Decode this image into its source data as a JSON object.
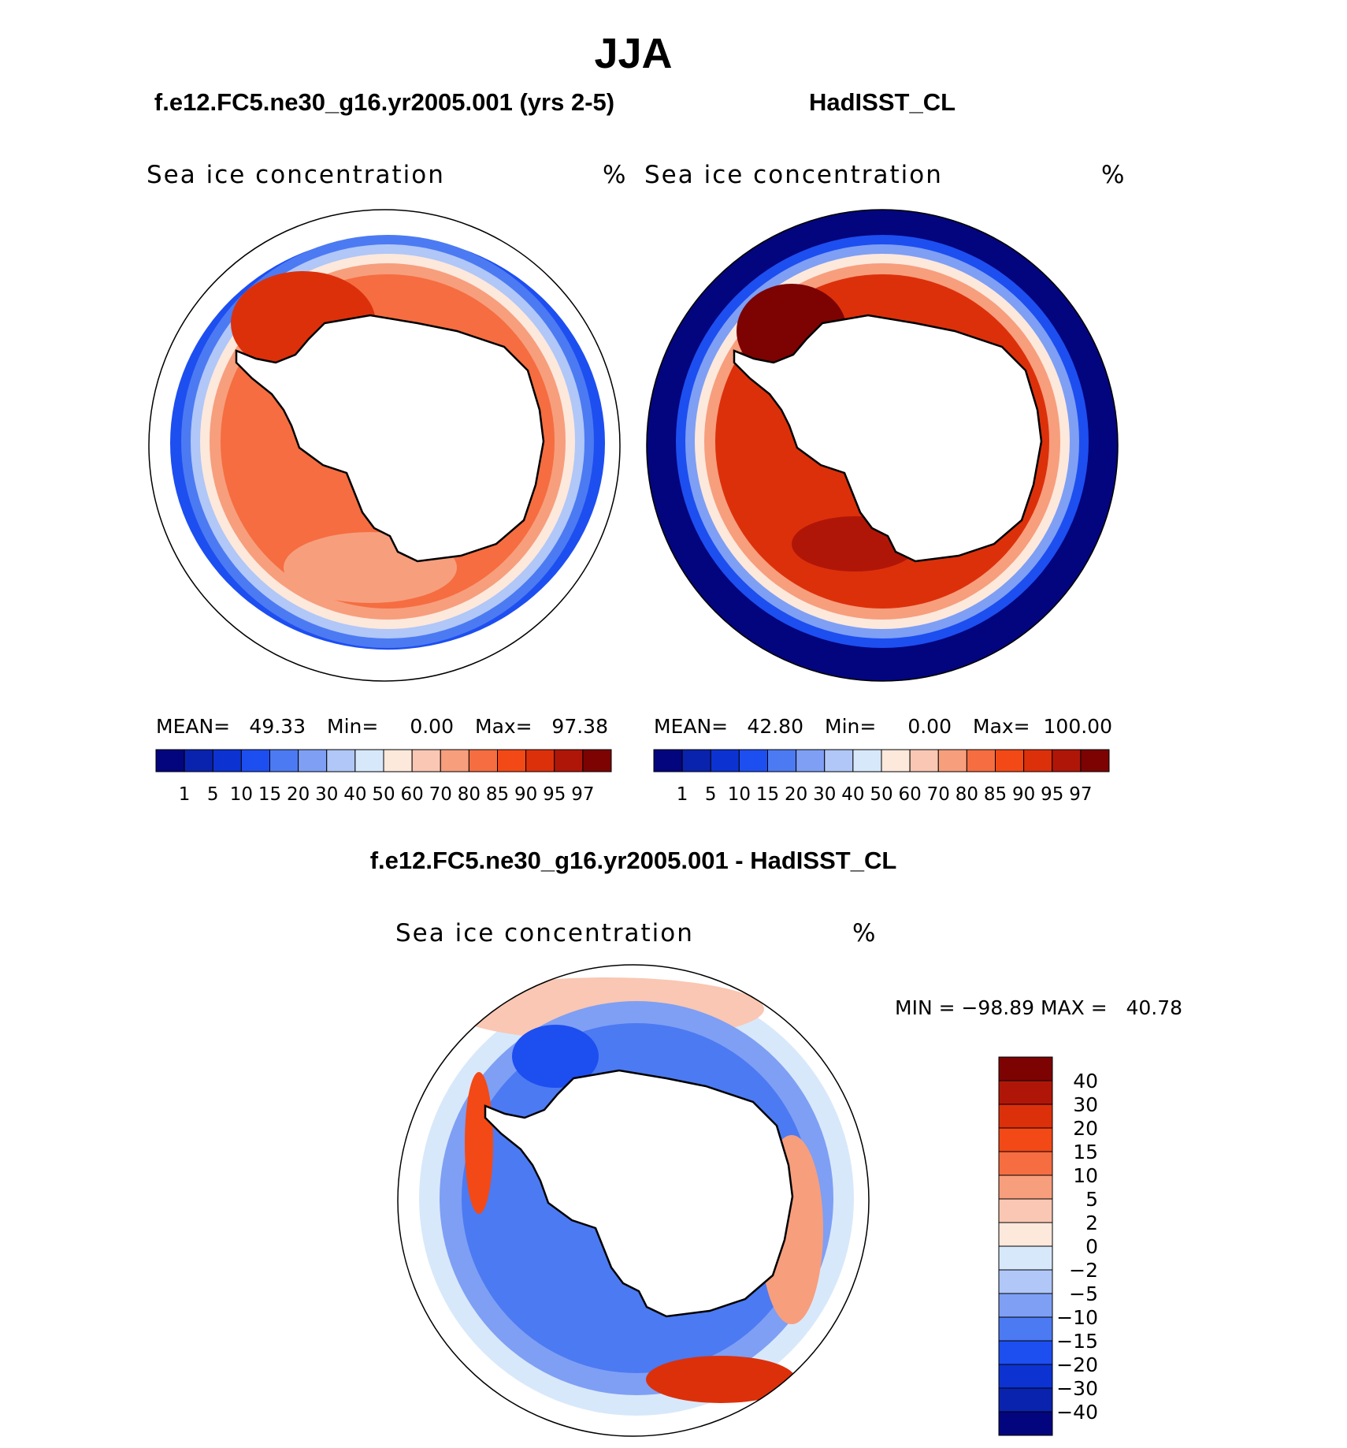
{
  "figure": {
    "season_title": "JJA",
    "panels": [
      {
        "id": "model",
        "title": "f.e12.FC5.ne30_g16.yr2005.001 (yrs 2-5)",
        "subtitle": "Sea ice concentration",
        "units": "%",
        "stats": {
          "mean_label": "MEAN=",
          "mean": "49.33",
          "min_label": "Min=",
          "min": "0.00",
          "max_label": "Max=",
          "max": "97.38"
        }
      },
      {
        "id": "obs",
        "title": "HadISST_CL",
        "subtitle": "Sea ice concentration",
        "units": "%",
        "stats": {
          "mean_label": "MEAN=",
          "mean": "42.80",
          "min_label": "Min=",
          "min": "0.00",
          "max_label": "Max=",
          "max": "100.00"
        }
      },
      {
        "id": "diff",
        "title": "f.e12.FC5.ne30_g16.yr2005.001 - HadISST_CL",
        "subtitle": "Sea ice concentration",
        "units": "%",
        "minmax_text": "MIN = −98.89 MAX =   40.78"
      }
    ]
  },
  "chart_data": [
    {
      "type": "heatmap",
      "projection": "south polar stereographic",
      "title": "f.e12.FC5.ne30_g16.yr2005.001 (yrs 2-5)",
      "variable": "Sea ice concentration",
      "units": "%",
      "mean": 49.33,
      "min": 0.0,
      "max": 97.38,
      "contour_levels": [
        1,
        5,
        10,
        15,
        20,
        30,
        40,
        50,
        60,
        70,
        80,
        85,
        90,
        95,
        97
      ],
      "colorbar_orientation": "horizontal"
    },
    {
      "type": "heatmap",
      "projection": "south polar stereographic",
      "title": "HadISST_CL",
      "variable": "Sea ice concentration",
      "units": "%",
      "mean": 42.8,
      "min": 0.0,
      "max": 100.0,
      "contour_levels": [
        1,
        5,
        10,
        15,
        20,
        30,
        40,
        50,
        60,
        70,
        80,
        85,
        90,
        95,
        97
      ],
      "colorbar_orientation": "horizontal"
    },
    {
      "type": "heatmap",
      "projection": "south polar stereographic",
      "title": "f.e12.FC5.ne30_g16.yr2005.001 - HadISST_CL",
      "variable": "Sea ice concentration",
      "units": "%",
      "min": -98.89,
      "max": 40.78,
      "contour_levels": [
        -40,
        -30,
        -20,
        -15,
        -10,
        -5,
        -2,
        0,
        2,
        5,
        10,
        15,
        20,
        30,
        40
      ],
      "contour_level_labels": [
        "−40",
        "−30",
        "−20",
        "−15",
        "−10",
        "−5",
        "−2",
        "0",
        "2",
        "5",
        "10",
        "15",
        "20",
        "30",
        "40"
      ],
      "colorbar_orientation": "vertical"
    }
  ],
  "colormaps": {
    "abs": [
      "#03057e",
      "#0a23ae",
      "#0c33d2",
      "#1d4ef0",
      "#4c7af2",
      "#7e9ff4",
      "#b0c7f7",
      "#d8e8fb",
      "#fde8dc",
      "#f9c7b3",
      "#f79e7d",
      "#f56d40",
      "#f34916",
      "#dc300b",
      "#b01608",
      "#7d0303"
    ],
    "diff": [
      "#03057e",
      "#0a23ae",
      "#0c33d2",
      "#1d4ef0",
      "#4c7af2",
      "#7e9ff4",
      "#b0c7f7",
      "#d8e8fb",
      "#fde8dc",
      "#f9c7b3",
      "#f79e7d",
      "#f56d40",
      "#f34916",
      "#dc300b",
      "#b01608",
      "#7d0303"
    ],
    "land": "#ffffff",
    "coast": "#000000"
  }
}
